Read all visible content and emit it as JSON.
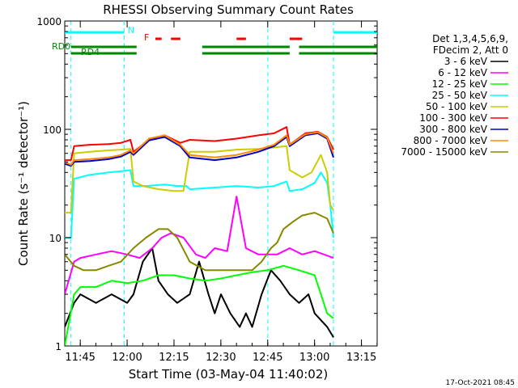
{
  "chart_data": {
    "type": "line",
    "title": "RHESSI Observing Summary Count Rates",
    "xlabel": "Start Time (03-May-04 11:40:02)",
    "ylabel": "Count Rate (s⁻¹ detector⁻¹)",
    "yscale": "log",
    "ylim": [
      1,
      1000
    ],
    "xlim_minutes": [
      0,
      100
    ],
    "x_ticks": [
      "11:45",
      "12:00",
      "12:15",
      "12:30",
      "12:45",
      "13:00",
      "13:15"
    ],
    "y_ticks": [
      "1",
      "10",
      "100",
      "1000"
    ],
    "grid": false,
    "legend_placement": "right",
    "legend_header": [
      "Det 1,3,4,5,6,9,",
      "FDecim 2, Att 0"
    ],
    "footer_timestamp": "17-Oct-2021 08:45",
    "flag_labels": {
      "night": "N",
      "flare": "F",
      "rd0": "RD0",
      "rd4": "RD4"
    },
    "series": [
      {
        "name": "3 - 6 keV",
        "color": "#000000",
        "x": [
          0,
          3,
          5,
          10,
          15,
          20,
          22,
          25,
          28,
          30,
          33,
          36,
          40,
          43,
          46,
          48,
          50,
          53,
          56,
          58,
          60,
          63,
          66,
          69,
          72,
          75,
          78,
          80,
          84,
          86
        ],
        "y": [
          1.5,
          2.5,
          3,
          2.5,
          3,
          2.5,
          3,
          6,
          8,
          4,
          3,
          2.5,
          3,
          6,
          3,
          2,
          3,
          2,
          1.5,
          2,
          1.5,
          3,
          5,
          4,
          3,
          2.5,
          3,
          2,
          1.5,
          1.2
        ]
      },
      {
        "name": "6 - 12 keV",
        "color": "#ff00ff",
        "x": [
          0,
          3,
          5,
          10,
          15,
          20,
          24,
          28,
          31,
          34,
          38,
          42,
          45,
          48,
          52,
          55,
          58,
          62,
          65,
          68,
          72,
          76,
          80,
          83,
          86
        ],
        "y": [
          3,
          6,
          6.5,
          7,
          7.5,
          7,
          6.5,
          8,
          10,
          11,
          10,
          7,
          6.5,
          8,
          7.5,
          24,
          8,
          7,
          7,
          7,
          8,
          7,
          7.5,
          7,
          6.5
        ]
      },
      {
        "name": "12 - 25 keV",
        "color": "#00ff00",
        "x": [
          0,
          3,
          5,
          10,
          15,
          20,
          25,
          30,
          35,
          40,
          45,
          50,
          55,
          60,
          65,
          70,
          75,
          80,
          84,
          86
        ],
        "y": [
          1,
          3,
          3.5,
          3.5,
          4,
          3.8,
          4,
          4.5,
          4.5,
          4.2,
          4,
          4.2,
          4.5,
          4.8,
          5,
          5.5,
          5,
          4.5,
          2,
          1.8
        ]
      },
      {
        "name": "25 - 50 keV",
        "color": "#00ffff",
        "x": [
          0,
          2,
          3,
          8,
          14,
          18,
          21,
          22,
          26,
          32,
          36,
          39,
          40,
          48,
          55,
          62,
          67,
          71,
          72,
          76,
          80,
          82,
          84,
          85,
          86
        ],
        "y": [
          10,
          10,
          35,
          38,
          40,
          41,
          42,
          30,
          30,
          31,
          30,
          30,
          28,
          29,
          30,
          29,
          30,
          33,
          27,
          28,
          32,
          40,
          32,
          20,
          10
        ]
      },
      {
        "name": "50 - 100 keV",
        "color": "#cccc00",
        "x": [
          0,
          2,
          3,
          8,
          14,
          18,
          21,
          22,
          25,
          30,
          35,
          38,
          40,
          48,
          55,
          62,
          67,
          71,
          72,
          76,
          79,
          82,
          84,
          85,
          86
        ],
        "y": [
          17,
          17,
          60,
          62,
          64,
          65,
          66,
          33,
          30,
          28,
          27,
          27,
          62,
          62,
          65,
          66,
          68,
          70,
          42,
          36,
          40,
          58,
          40,
          20,
          18
        ]
      },
      {
        "name": "100 - 300 keV",
        "color": "#ff0000",
        "x": [
          0,
          2,
          3,
          8,
          14,
          18,
          21,
          22,
          27,
          32,
          37,
          40,
          48,
          55,
          62,
          67,
          71,
          72,
          77,
          81,
          84,
          86
        ],
        "y": [
          52,
          52,
          70,
          72,
          73,
          75,
          80,
          62,
          80,
          88,
          75,
          80,
          78,
          82,
          88,
          92,
          105,
          72,
          92,
          95,
          85,
          65
        ]
      },
      {
        "name": "300 - 800 keV",
        "color": "#0000cc",
        "x": [
          0,
          2,
          3,
          8,
          14,
          18,
          21,
          22,
          27,
          32,
          37,
          40,
          48,
          55,
          62,
          67,
          71,
          72,
          77,
          81,
          84,
          86
        ],
        "y": [
          48,
          46,
          50,
          51,
          53,
          56,
          62,
          58,
          79,
          85,
          70,
          55,
          52,
          55,
          62,
          70,
          85,
          70,
          88,
          92,
          82,
          55
        ]
      },
      {
        "name": "800 - 7000 keV",
        "color": "#ff8800",
        "x": [
          0,
          2,
          3,
          8,
          14,
          18,
          21,
          22,
          27,
          32,
          37,
          40,
          48,
          55,
          62,
          67,
          71,
          72,
          77,
          81,
          84,
          86
        ],
        "y": [
          50,
          47,
          52,
          53,
          55,
          58,
          64,
          60,
          82,
          88,
          72,
          58,
          55,
          58,
          65,
          72,
          88,
          72,
          90,
          94,
          84,
          60
        ]
      },
      {
        "name": "7000 - 15000 keV",
        "color": "#888800",
        "x": [
          0,
          3,
          6,
          10,
          14,
          18,
          22,
          26,
          30,
          33,
          36,
          40,
          45,
          50,
          55,
          60,
          63,
          66,
          68,
          70,
          73,
          76,
          80,
          84,
          86
        ],
        "y": [
          7,
          5.5,
          5,
          5,
          5.5,
          6,
          8,
          10,
          12,
          12,
          10,
          6,
          5,
          5,
          5,
          5,
          6,
          8,
          9,
          12,
          14,
          16,
          17,
          15,
          11
        ]
      }
    ],
    "flags": {
      "night": {
        "color": "#00ffff",
        "intervals": [
          [
            0,
            19
          ],
          [
            86,
            100
          ]
        ],
        "dashed_lines_at": [
          2,
          19,
          65,
          86
        ]
      },
      "flare": {
        "color": "#ff0000",
        "intervals": [
          [
            29,
            31
          ],
          [
            34,
            37
          ],
          [
            55,
            58
          ],
          [
            72,
            76
          ]
        ]
      },
      "rd0": {
        "color": "#008800",
        "intervals": [
          [
            2,
            23
          ],
          [
            44,
            72
          ],
          [
            75,
            100
          ]
        ]
      },
      "rd4": {
        "color": "#008800",
        "intervals": [
          [
            2,
            23
          ],
          [
            44,
            72
          ],
          [
            75,
            100
          ]
        ]
      }
    }
  }
}
